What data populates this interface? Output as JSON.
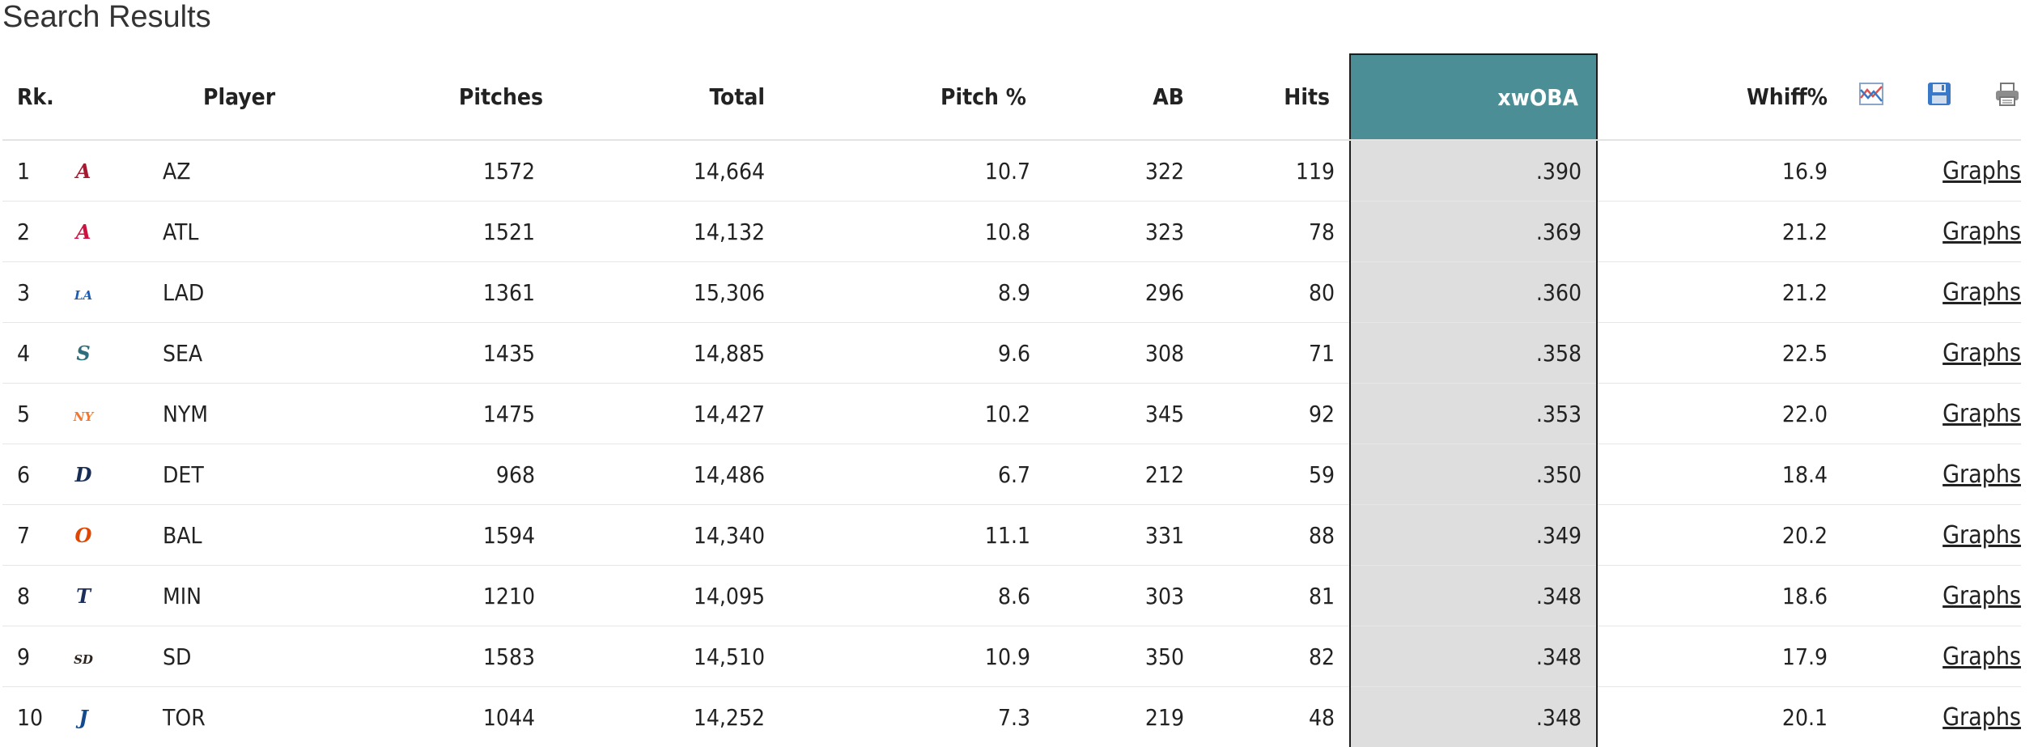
{
  "page": {
    "title": "Search Results"
  },
  "table": {
    "headers": {
      "rank": "Rk.",
      "player": "Player",
      "pitches": "Pitches",
      "total": "Total",
      "pitch_pct": "Pitch %",
      "ab": "AB",
      "hits": "Hits",
      "xwoba": "xwOBA",
      "whiff": "Whiff%"
    },
    "toolbar_icons": [
      "chart-icon",
      "save-icon",
      "print-icon"
    ],
    "rows": [
      {
        "rank": "1",
        "team": "AZ",
        "logo": "diamondbacks-logo",
        "pitches": "1572",
        "total": "14,664",
        "pitch_pct": "10.7",
        "ab": "322",
        "hits": "119",
        "xwoba": ".390",
        "whiff": "16.9",
        "link": "Graphs"
      },
      {
        "rank": "2",
        "team": "ATL",
        "logo": "braves-logo",
        "pitches": "1521",
        "total": "14,132",
        "pitch_pct": "10.8",
        "ab": "323",
        "hits": "78",
        "xwoba": ".369",
        "whiff": "21.2",
        "link": "Graphs"
      },
      {
        "rank": "3",
        "team": "LAD",
        "logo": "dodgers-logo",
        "pitches": "1361",
        "total": "15,306",
        "pitch_pct": "8.9",
        "ab": "296",
        "hits": "80",
        "xwoba": ".360",
        "whiff": "21.2",
        "link": "Graphs"
      },
      {
        "rank": "4",
        "team": "SEA",
        "logo": "mariners-logo",
        "pitches": "1435",
        "total": "14,885",
        "pitch_pct": "9.6",
        "ab": "308",
        "hits": "71",
        "xwoba": ".358",
        "whiff": "22.5",
        "link": "Graphs"
      },
      {
        "rank": "5",
        "team": "NYM",
        "logo": "mets-logo",
        "pitches": "1475",
        "total": "14,427",
        "pitch_pct": "10.2",
        "ab": "345",
        "hits": "92",
        "xwoba": ".353",
        "whiff": "22.0",
        "link": "Graphs"
      },
      {
        "rank": "6",
        "team": "DET",
        "logo": "tigers-logo",
        "pitches": "968",
        "total": "14,486",
        "pitch_pct": "6.7",
        "ab": "212",
        "hits": "59",
        "xwoba": ".350",
        "whiff": "18.4",
        "link": "Graphs"
      },
      {
        "rank": "7",
        "team": "BAL",
        "logo": "orioles-logo",
        "pitches": "1594",
        "total": "14,340",
        "pitch_pct": "11.1",
        "ab": "331",
        "hits": "88",
        "xwoba": ".349",
        "whiff": "20.2",
        "link": "Graphs"
      },
      {
        "rank": "8",
        "team": "MIN",
        "logo": "twins-logo",
        "pitches": "1210",
        "total": "14,095",
        "pitch_pct": "8.6",
        "ab": "303",
        "hits": "81",
        "xwoba": ".348",
        "whiff": "18.6",
        "link": "Graphs"
      },
      {
        "rank": "9",
        "team": "SD",
        "logo": "padres-logo",
        "pitches": "1583",
        "total": "14,510",
        "pitch_pct": "10.9",
        "ab": "350",
        "hits": "82",
        "xwoba": ".348",
        "whiff": "17.9",
        "link": "Graphs"
      },
      {
        "rank": "10",
        "team": "TOR",
        "logo": "blue-jays-logo",
        "pitches": "1044",
        "total": "14,252",
        "pitch_pct": "7.3",
        "ab": "219",
        "hits": "48",
        "xwoba": ".348",
        "whiff": "20.1",
        "link": "Graphs"
      }
    ]
  },
  "colors": {
    "xwoba_header_bg": "#4c8e95",
    "xwoba_column_bg": "#dedede",
    "logo_colors": {
      "diamondbacks-logo": "#a71930",
      "braves-logo": "#ce1141",
      "dodgers-logo": "#1e5bb0",
      "mariners-logo": "#2e6e7a",
      "mets-logo": "#f2762e",
      "tigers-logo": "#182d55",
      "orioles-logo": "#df4601",
      "twins-logo": "#1c2f5a",
      "padres-logo": "#2f241d",
      "blue-jays-logo": "#134a8e"
    }
  }
}
